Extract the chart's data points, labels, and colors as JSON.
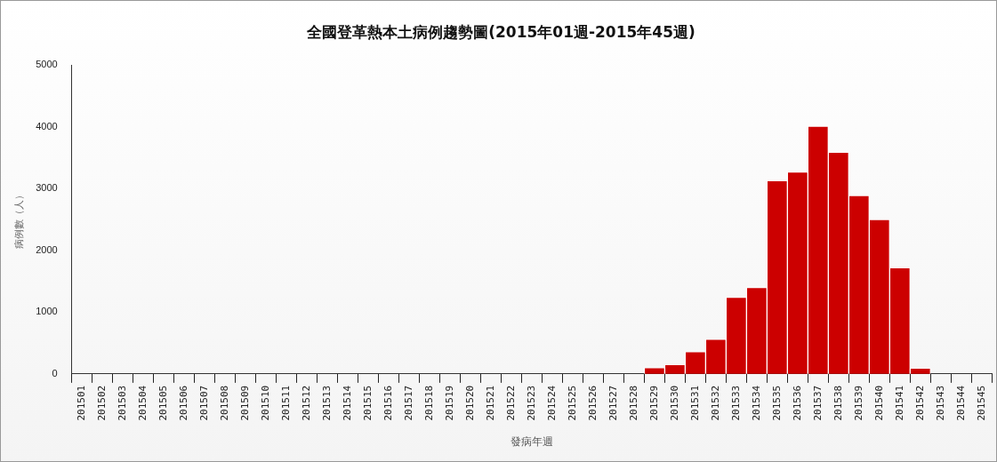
{
  "chart_data": {
    "type": "bar",
    "title": "全國登革熱本土病例趨勢圖(2015年01週-2015年45週)",
    "xlabel": "發病年週",
    "ylabel": "病例數（人）",
    "categories": [
      "201501",
      "201502",
      "201503",
      "201504",
      "201505",
      "201506",
      "201507",
      "201508",
      "201509",
      "201510",
      "201511",
      "201512",
      "201513",
      "201514",
      "201515",
      "201516",
      "201517",
      "201518",
      "201519",
      "201520",
      "201521",
      "201522",
      "201523",
      "201524",
      "201525",
      "201526",
      "201527",
      "201528",
      "201529",
      "201530",
      "201531",
      "201532",
      "201533",
      "201534",
      "201535",
      "201536",
      "201537",
      "201538",
      "201539",
      "201540",
      "201541",
      "201542",
      "201543",
      "201544",
      "201545"
    ],
    "values": [
      0,
      0,
      0,
      0,
      0,
      0,
      0,
      0,
      0,
      0,
      0,
      0,
      0,
      0,
      0,
      0,
      0,
      0,
      0,
      0,
      0,
      0,
      0,
      0,
      0,
      0,
      0,
      0,
      100,
      150,
      360,
      560,
      1240,
      1400,
      3130,
      3270,
      4010,
      3590,
      2890,
      2500,
      1720,
      95,
      0,
      0,
      0
    ],
    "color": "#cc0000",
    "ylim": [
      0,
      5000
    ],
    "yticks": [
      0,
      1000,
      2000,
      3000,
      4000,
      5000
    ],
    "grid": false,
    "legend": false
  }
}
